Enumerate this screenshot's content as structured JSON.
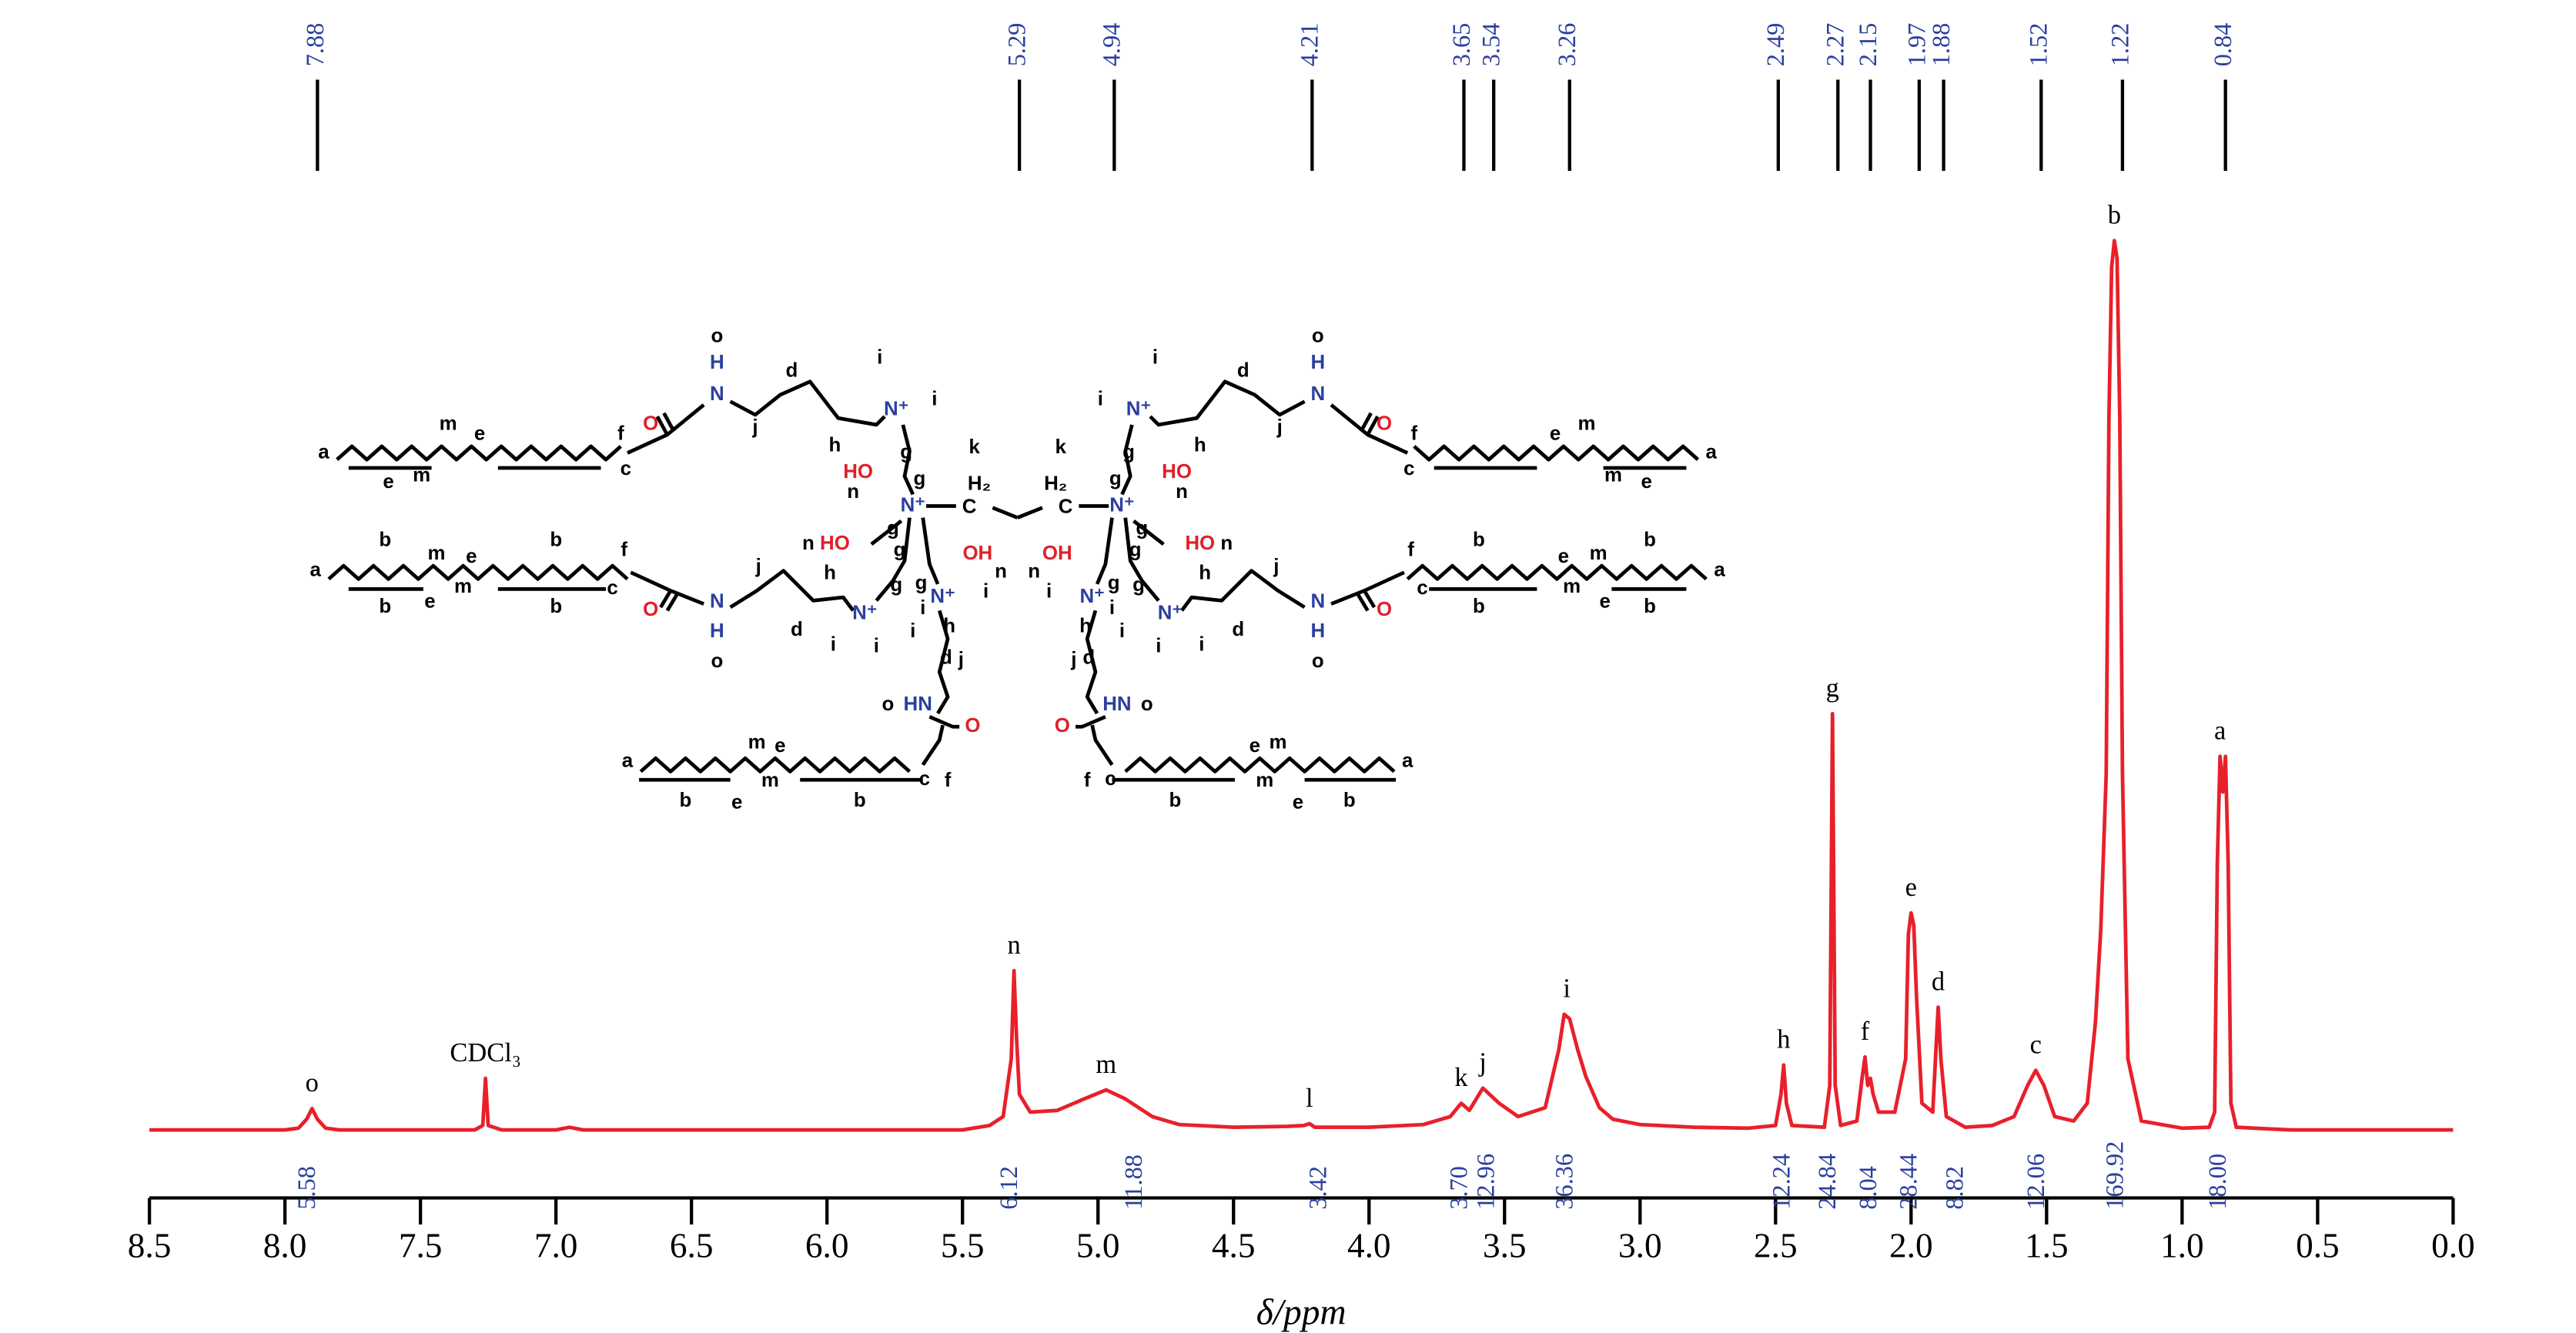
{
  "chart_data": {
    "type": "nmr",
    "xlabel": "δ/ppm",
    "xlim": [
      8.5,
      0.0
    ],
    "xticks": [
      8.5,
      {
        "value": 8.0,
        "label": "8.0"
      },
      7.5,
      {
        "value": 7.0,
        "label": "7.0"
      },
      6.5,
      {
        "value": 6.0,
        "label": "6.0"
      },
      5.5,
      {
        "value": 5.0,
        "label": "5.0"
      },
      4.5,
      {
        "value": 4.0,
        "label": "4.0"
      },
      3.5,
      {
        "value": 3.0,
        "label": "3.0"
      },
      2.5,
      {
        "value": 2.0,
        "label": "2.0"
      },
      1.5,
      {
        "value": 1.0,
        "label": "1.0"
      },
      0.5,
      {
        "value": 0.0,
        "label": "0.0"
      }
    ],
    "ylim": [
      0,
      100
    ],
    "color": "#e8202a",
    "x": [
      8.5,
      8.0,
      7.95,
      7.92,
      7.9,
      7.88,
      7.85,
      7.8,
      7.3,
      7.27,
      7.26,
      7.25,
      7.2,
      7.0,
      6.95,
      6.9,
      5.5,
      5.4,
      5.35,
      5.32,
      5.31,
      5.3,
      5.29,
      5.25,
      5.15,
      5.05,
      4.97,
      4.9,
      4.8,
      4.7,
      4.5,
      4.3,
      4.24,
      4.22,
      4.2,
      4.0,
      3.8,
      3.7,
      3.66,
      3.63,
      3.58,
      3.52,
      3.45,
      3.35,
      3.3,
      3.28,
      3.26,
      3.23,
      3.2,
      3.15,
      3.1,
      3.0,
      2.8,
      2.6,
      2.5,
      2.48,
      2.47,
      2.46,
      2.44,
      2.32,
      2.3,
      2.29,
      2.28,
      2.26,
      2.2,
      2.18,
      2.17,
      2.16,
      2.15,
      2.14,
      2.12,
      2.06,
      2.02,
      2.01,
      2.0,
      1.99,
      1.98,
      1.96,
      1.92,
      1.91,
      1.9,
      1.89,
      1.87,
      1.8,
      1.7,
      1.62,
      1.57,
      1.54,
      1.51,
      1.47,
      1.4,
      1.35,
      1.32,
      1.3,
      1.28,
      1.27,
      1.26,
      1.25,
      1.24,
      1.23,
      1.22,
      1.2,
      1.15,
      1.0,
      0.9,
      0.88,
      0.87,
      0.86,
      0.85,
      0.84,
      0.83,
      0.82,
      0.8,
      0.6,
      0.0
    ],
    "values": [
      0,
      0,
      0.2,
      1.2,
      2.4,
      1.2,
      0.2,
      0,
      0,
      0.5,
      5.8,
      0.5,
      0,
      0,
      0.3,
      0,
      0,
      0.5,
      1.5,
      8,
      17.9,
      10,
      4,
      2,
      2.2,
      3.5,
      4.5,
      3.5,
      1.5,
      0.6,
      0.3,
      0.4,
      0.5,
      0.7,
      0.3,
      0.3,
      0.6,
      1.5,
      3,
      2.2,
      4.7,
      3,
      1.5,
      2.5,
      9,
      13,
      12.5,
      9,
      6,
      2.5,
      1.2,
      0.6,
      0.3,
      0.2,
      0.5,
      4,
      7.3,
      3,
      0.5,
      0.3,
      5,
      46.8,
      5,
      0.5,
      1,
      6,
      8.2,
      5,
      5.8,
      4,
      2,
      2,
      8,
      22,
      24.4,
      23,
      15,
      3,
      2,
      8,
      13.8,
      8,
      1.5,
      0.3,
      0.5,
      1.5,
      5,
      6.7,
      5,
      1.5,
      1,
      3,
      12,
      22.6,
      40,
      80,
      97,
      100,
      98,
      80,
      40,
      8,
      1,
      0.2,
      0.3,
      2,
      30,
      42,
      38,
      42,
      30,
      3,
      0.3,
      0,
      0
    ],
    "peak_labels": [
      7.88,
      5.29,
      4.94,
      4.21,
      3.65,
      3.54,
      3.26,
      2.49,
      2.27,
      2.15,
      1.97,
      1.88,
      1.52,
      1.22,
      0.84
    ],
    "integrals": {
      "values": [
        5.58,
        6.12,
        11.88,
        3.42,
        3.7,
        12.96,
        36.36,
        12.24,
        24.84,
        8.04,
        28.44,
        8.82,
        12.06,
        169.92,
        18.0
      ],
      "value_labels": [
        "5.58",
        "6.12",
        "11.88",
        "3.42",
        "3.70",
        "12.96",
        "36.36",
        "12.24",
        "24.84",
        "8.04",
        "28.44",
        "8.82",
        "12.06",
        "169.92",
        "18.00"
      ]
    },
    "assignments": [
      "o",
      "CDCl₃",
      "n",
      "m",
      "l",
      "k",
      "j",
      "i",
      "h",
      "g",
      "f",
      "e",
      "d",
      "c",
      "b",
      "a"
    ]
  },
  "structure": {
    "left": [
      "o",
      "H",
      "N",
      "d",
      "j",
      "h",
      "i",
      "i",
      "N⁺",
      "g",
      "g",
      "k",
      "O",
      "f",
      "c",
      "a",
      "m",
      "e",
      "e",
      "m",
      "HO",
      "n",
      "N⁺",
      "H₂",
      "C",
      "n",
      "HO",
      "g",
      "g",
      "OH",
      "n",
      "g",
      "N⁺",
      "i",
      "i",
      "h",
      "d",
      "j",
      "o",
      "HN",
      "O",
      "a",
      "b",
      "m",
      "e",
      "m",
      "b",
      "f",
      "c",
      "O",
      "N",
      "H",
      "o",
      "j",
      "h",
      "d",
      "g",
      "N⁺",
      "i",
      "i",
      "b",
      "e",
      "b",
      "i",
      "a",
      "m",
      "e",
      "m",
      "b",
      "e",
      "b",
      "c",
      "f"
    ],
    "right": [
      "o",
      "H",
      "N",
      "d",
      "j",
      "h",
      "i",
      "i",
      "N⁺",
      "g",
      "g",
      "k",
      "O",
      "f",
      "c",
      "a",
      "m",
      "e",
      "e",
      "m",
      "HO",
      "n",
      "N⁺",
      "H₂",
      "C",
      "n",
      "HO",
      "g",
      "g",
      "OH",
      "n",
      "g",
      "N⁺",
      "i",
      "i",
      "h",
      "d",
      "j",
      "o",
      "HN",
      "O",
      "a",
      "b",
      "m",
      "e",
      "m",
      "b",
      "f",
      "c",
      "O",
      "N",
      "H",
      "o",
      "j",
      "h",
      "d",
      "g",
      "N⁺",
      "i",
      "i",
      "b",
      "e",
      "b",
      "i",
      "a",
      "m",
      "e",
      "m",
      "b",
      "e",
      "b",
      "c",
      "f"
    ]
  }
}
